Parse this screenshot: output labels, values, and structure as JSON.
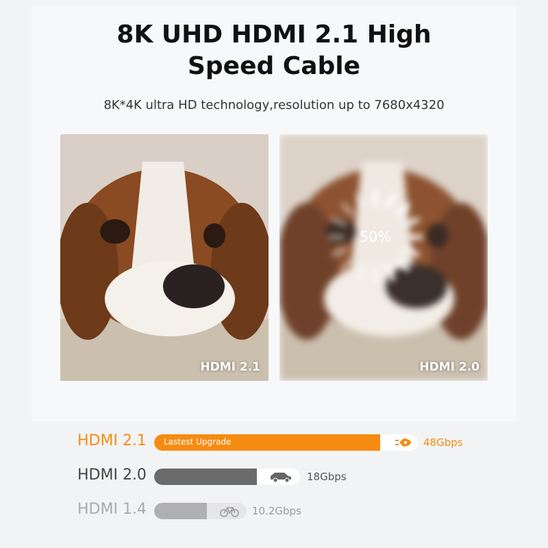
{
  "header": {
    "title_line1": "8K UHD HDMI 2.1 High",
    "title_line2": "Speed Cable",
    "subtitle": "8K*4K ultra HD technology,resolution up to 7680x4320"
  },
  "photos": [
    {
      "label": "HDMI 2.1"
    },
    {
      "label": "HDMI 2.0",
      "loading_text": "50%"
    }
  ],
  "comparison": [
    {
      "name": "HDMI 2.1",
      "speed": "48Gbps",
      "fill_percent": 86,
      "bar_text": "Lastest Upgrade",
      "icon": "rocket-icon",
      "color": "#f68b12"
    },
    {
      "name": "HDMI 2.0",
      "speed": "18Gbps",
      "fill_percent": 70,
      "icon": "car-icon",
      "color": "#6b6b6b"
    },
    {
      "name": "HDMI 1.4",
      "speed": "10.2Gbps",
      "fill_percent": 57,
      "icon": "bicycle-icon",
      "color": "#b0b0b0"
    }
  ]
}
